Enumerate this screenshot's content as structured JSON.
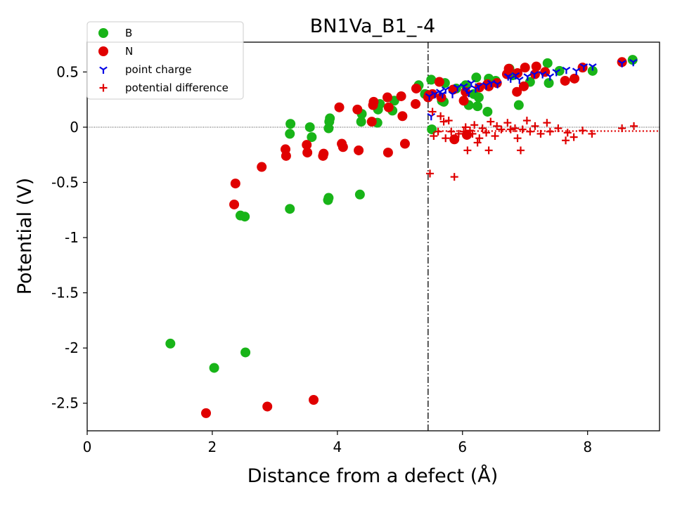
{
  "chart_data": {
    "type": "scatter",
    "title": "BN1Va_B1_-4",
    "xlabel": "Distance from a defect (Å)",
    "ylabel": "Potential (V)",
    "xlim": [
      0,
      9.15
    ],
    "ylim": [
      -2.75,
      0.77
    ],
    "xticks": [
      0,
      2,
      4,
      6,
      8
    ],
    "xtick_labels": [
      "0",
      "2",
      "4",
      "6",
      "8"
    ],
    "yticks": [
      -2.5,
      -2,
      -1.5,
      -1,
      -0.5,
      0,
      0.5
    ],
    "ytick_labels": [
      "-2.5",
      "-2",
      "-1.5",
      "-1",
      "-0.5",
      "0",
      "0.5"
    ],
    "grid": false,
    "legend_position": "upper-left",
    "reference_lines": {
      "zero_line_y": 0,
      "defect_region_x": 5.45,
      "average_difference_y": -0.035,
      "average_difference_from_x": 5.45
    },
    "colors": {
      "B": "#18b418",
      "N": "#e00000",
      "point_charge": "#0000e6",
      "potential_difference": "#e00000"
    },
    "series": [
      {
        "name": "B",
        "marker": "circle",
        "points": [
          [
            1.33,
            -1.96
          ],
          [
            2.03,
            -2.18
          ],
          [
            2.45,
            -0.8
          ],
          [
            2.52,
            -0.81
          ],
          [
            2.53,
            -2.04
          ],
          [
            3.24,
            -0.74
          ],
          [
            3.24,
            -0.06
          ],
          [
            3.25,
            0.03
          ],
          [
            3.56,
            0.0
          ],
          [
            3.59,
            -0.09
          ],
          [
            3.85,
            -0.66
          ],
          [
            3.86,
            -0.64
          ],
          [
            3.86,
            -0.01
          ],
          [
            3.87,
            0.05
          ],
          [
            3.88,
            0.08
          ],
          [
            4.36,
            -0.61
          ],
          [
            4.38,
            0.05
          ],
          [
            4.39,
            0.12
          ],
          [
            4.64,
            0.04
          ],
          [
            4.65,
            0.16
          ],
          [
            4.68,
            0.21
          ],
          [
            4.88,
            0.15
          ],
          [
            4.91,
            0.24
          ],
          [
            5.28,
            0.36
          ],
          [
            5.3,
            0.38
          ],
          [
            5.4,
            0.3
          ],
          [
            5.5,
            0.43
          ],
          [
            5.51,
            -0.02
          ],
          [
            5.67,
            0.24
          ],
          [
            5.7,
            0.23
          ],
          [
            5.72,
            0.4
          ],
          [
            5.9,
            0.35
          ],
          [
            6.05,
            0.38
          ],
          [
            6.1,
            0.2
          ],
          [
            6.18,
            0.3
          ],
          [
            6.22,
            0.45
          ],
          [
            6.24,
            0.19
          ],
          [
            6.26,
            0.27
          ],
          [
            6.4,
            0.14
          ],
          [
            6.42,
            0.44
          ],
          [
            6.53,
            0.42
          ],
          [
            6.75,
            0.53
          ],
          [
            6.8,
            0.47
          ],
          [
            6.9,
            0.2
          ],
          [
            7.08,
            0.41
          ],
          [
            7.36,
            0.58
          ],
          [
            7.38,
            0.4
          ],
          [
            7.55,
            0.51
          ],
          [
            8.08,
            0.51
          ],
          [
            8.72,
            0.61
          ]
        ]
      },
      {
        "name": "N",
        "marker": "circle",
        "points": [
          [
            1.9,
            -2.59
          ],
          [
            2.35,
            -0.7
          ],
          [
            2.37,
            -0.51
          ],
          [
            2.79,
            -0.36
          ],
          [
            2.88,
            -2.53
          ],
          [
            3.17,
            -0.2
          ],
          [
            3.18,
            -0.26
          ],
          [
            3.51,
            -0.16
          ],
          [
            3.52,
            -0.23
          ],
          [
            3.62,
            -2.47
          ],
          [
            3.77,
            -0.26
          ],
          [
            3.78,
            -0.24
          ],
          [
            4.03,
            0.18
          ],
          [
            4.07,
            -0.15
          ],
          [
            4.09,
            -0.18
          ],
          [
            4.32,
            0.16
          ],
          [
            4.34,
            -0.21
          ],
          [
            4.55,
            0.05
          ],
          [
            4.57,
            0.2
          ],
          [
            4.58,
            0.23
          ],
          [
            4.8,
            0.27
          ],
          [
            4.81,
            -0.23
          ],
          [
            4.82,
            0.18
          ],
          [
            5.02,
            0.28
          ],
          [
            5.04,
            0.1
          ],
          [
            5.08,
            -0.15
          ],
          [
            5.25,
            0.21
          ],
          [
            5.26,
            0.35
          ],
          [
            5.45,
            0.27
          ],
          [
            5.46,
            0.29
          ],
          [
            5.52,
            0.3
          ],
          [
            5.63,
            0.41
          ],
          [
            5.66,
            0.27
          ],
          [
            5.85,
            0.34
          ],
          [
            5.87,
            -0.11
          ],
          [
            6.02,
            0.24
          ],
          [
            6.05,
            0.32
          ],
          [
            6.07,
            -0.07
          ],
          [
            6.27,
            0.36
          ],
          [
            6.4,
            0.39
          ],
          [
            6.42,
            0.37
          ],
          [
            6.55,
            0.4
          ],
          [
            6.71,
            0.48
          ],
          [
            6.74,
            0.53
          ],
          [
            6.87,
            0.32
          ],
          [
            6.88,
            0.49
          ],
          [
            6.98,
            0.37
          ],
          [
            7.0,
            0.54
          ],
          [
            7.16,
            0.48
          ],
          [
            7.18,
            0.55
          ],
          [
            7.32,
            0.5
          ],
          [
            7.64,
            0.42
          ],
          [
            7.79,
            0.44
          ],
          [
            7.92,
            0.54
          ],
          [
            8.55,
            0.59
          ]
        ]
      },
      {
        "name": "point charge",
        "marker": "tri_down",
        "points": [
          [
            5.47,
            0.28
          ],
          [
            5.5,
            0.1
          ],
          [
            5.56,
            0.3
          ],
          [
            5.64,
            0.32
          ],
          [
            5.68,
            0.3
          ],
          [
            5.73,
            0.34
          ],
          [
            5.84,
            0.3
          ],
          [
            5.92,
            0.36
          ],
          [
            6.02,
            0.37
          ],
          [
            6.07,
            0.34
          ],
          [
            6.1,
            0.31
          ],
          [
            6.14,
            0.4
          ],
          [
            6.21,
            0.35
          ],
          [
            6.26,
            0.37
          ],
          [
            6.38,
            0.38
          ],
          [
            6.46,
            0.4
          ],
          [
            6.56,
            0.39
          ],
          [
            6.73,
            0.46
          ],
          [
            6.77,
            0.44
          ],
          [
            6.85,
            0.47
          ],
          [
            6.91,
            0.43
          ],
          [
            7.04,
            0.46
          ],
          [
            7.15,
            0.48
          ],
          [
            7.28,
            0.48
          ],
          [
            7.4,
            0.46
          ],
          [
            7.5,
            0.5
          ],
          [
            7.66,
            0.52
          ],
          [
            7.82,
            0.51
          ],
          [
            7.94,
            0.55
          ],
          [
            8.08,
            0.55
          ],
          [
            8.55,
            0.58
          ],
          [
            8.73,
            0.59
          ]
        ]
      },
      {
        "name": "potential difference",
        "marker": "plus",
        "points": [
          [
            5.48,
            -0.42
          ],
          [
            5.52,
            0.14
          ],
          [
            5.54,
            -0.08
          ],
          [
            5.61,
            -0.04
          ],
          [
            5.65,
            0.1
          ],
          [
            5.7,
            0.05
          ],
          [
            5.73,
            -0.1
          ],
          [
            5.78,
            0.06
          ],
          [
            5.82,
            -0.04
          ],
          [
            5.87,
            -0.45
          ],
          [
            5.94,
            -0.06
          ],
          [
            6.02,
            -0.04
          ],
          [
            6.05,
            0.0
          ],
          [
            6.08,
            -0.21
          ],
          [
            6.12,
            -0.03
          ],
          [
            6.16,
            -0.06
          ],
          [
            6.19,
            0.02
          ],
          [
            6.24,
            -0.14
          ],
          [
            6.27,
            -0.1
          ],
          [
            6.32,
            -0.01
          ],
          [
            6.38,
            -0.05
          ],
          [
            6.42,
            -0.21
          ],
          [
            6.45,
            0.05
          ],
          [
            6.52,
            -0.08
          ],
          [
            6.55,
            0.01
          ],
          [
            6.62,
            -0.02
          ],
          [
            6.72,
            0.04
          ],
          [
            6.77,
            -0.02
          ],
          [
            6.84,
            -0.01
          ],
          [
            6.88,
            -0.1
          ],
          [
            6.93,
            -0.21
          ],
          [
            6.96,
            -0.02
          ],
          [
            7.03,
            0.06
          ],
          [
            7.08,
            -0.04
          ],
          [
            7.16,
            0.01
          ],
          [
            7.25,
            -0.06
          ],
          [
            7.35,
            0.04
          ],
          [
            7.4,
            -0.04
          ],
          [
            7.53,
            -0.01
          ],
          [
            7.65,
            -0.12
          ],
          [
            7.68,
            -0.05
          ],
          [
            7.78,
            -0.09
          ],
          [
            7.92,
            -0.03
          ],
          [
            8.07,
            -0.06
          ],
          [
            8.55,
            -0.01
          ],
          [
            8.74,
            0.01
          ]
        ]
      }
    ]
  }
}
